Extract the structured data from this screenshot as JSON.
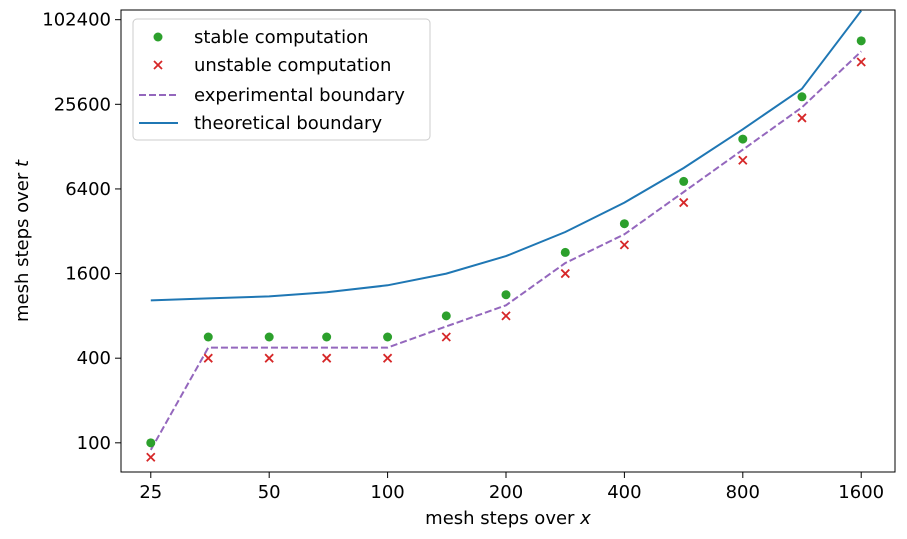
{
  "chart_data": {
    "type": "scatter",
    "xlabel": "mesh steps over ",
    "xlabel_var": "x",
    "ylabel": "mesh steps over ",
    "ylabel_var": "t",
    "x_scale": "log2",
    "y_scale": "log2",
    "x_ticks": [
      25,
      50,
      100,
      200,
      400,
      800,
      1600
    ],
    "y_ticks": [
      100,
      400,
      1600,
      6400,
      25600,
      102400
    ],
    "xlim": [
      21,
      1950
    ],
    "ylim": [
      62,
      120000
    ],
    "grid": false,
    "legend_position": "upper left",
    "series": [
      {
        "name": "stable computation",
        "kind": "scatter",
        "marker": "circle",
        "color": "#2ca02c",
        "points": [
          [
            25,
            100
          ],
          [
            35,
            566
          ],
          [
            50,
            566
          ],
          [
            70,
            566
          ],
          [
            100,
            566
          ],
          [
            141,
            800
          ],
          [
            200,
            1131
          ],
          [
            283,
            2263
          ],
          [
            400,
            3620
          ],
          [
            566,
            7241
          ],
          [
            800,
            14482
          ],
          [
            1131,
            28963
          ],
          [
            1600,
            72408
          ]
        ]
      },
      {
        "name": "unstable computation",
        "kind": "scatter",
        "marker": "x",
        "color": "#d62728",
        "points": [
          [
            25,
            79
          ],
          [
            35,
            400
          ],
          [
            50,
            400
          ],
          [
            70,
            400
          ],
          [
            100,
            400
          ],
          [
            141,
            566
          ],
          [
            200,
            800
          ],
          [
            283,
            1600
          ],
          [
            400,
            2560
          ],
          [
            566,
            5120
          ],
          [
            800,
            10240
          ],
          [
            1131,
            20480
          ],
          [
            1600,
            51200
          ]
        ]
      },
      {
        "name": "experimental boundary",
        "kind": "line",
        "dash": true,
        "color": "#9467bd",
        "points": [
          [
            25,
            89
          ],
          [
            35,
            476
          ],
          [
            50,
            476
          ],
          [
            70,
            476
          ],
          [
            100,
            476
          ],
          [
            141,
            673
          ],
          [
            200,
            951
          ],
          [
            283,
            1903
          ],
          [
            400,
            3044
          ],
          [
            566,
            6089
          ],
          [
            800,
            12178
          ],
          [
            1131,
            24356
          ],
          [
            1600,
            60887
          ]
        ]
      },
      {
        "name": "theoretical boundary",
        "kind": "line",
        "dash": false,
        "color": "#1f77b4",
        "points": [
          [
            25,
            1031
          ],
          [
            35,
            1066
          ],
          [
            50,
            1101
          ],
          [
            70,
            1179
          ],
          [
            100,
            1320
          ],
          [
            141,
            1600
          ],
          [
            200,
            2130
          ],
          [
            283,
            3160
          ],
          [
            400,
            5120
          ],
          [
            566,
            9020
          ],
          [
            800,
            17000
          ],
          [
            1131,
            33000
          ],
          [
            1600,
            118600
          ]
        ]
      }
    ]
  }
}
